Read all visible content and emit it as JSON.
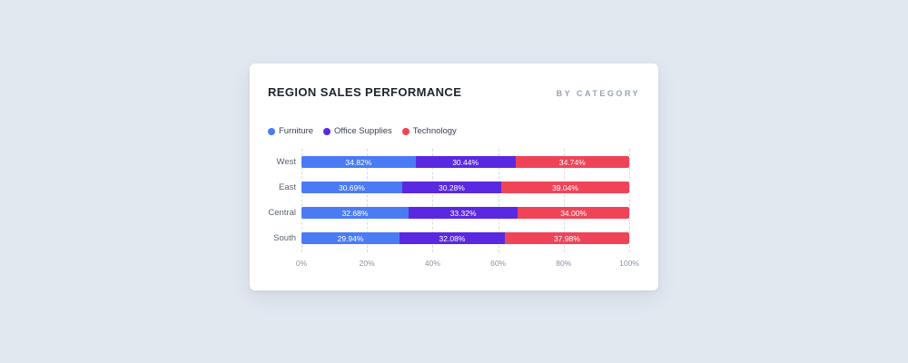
{
  "card": {
    "title": "REGION SALES PERFORMANCE",
    "subtitle": "BY CATEGORY"
  },
  "legend": [
    {
      "label": "Furniture",
      "color": "#4a7bf5"
    },
    {
      "label": "Office Supplies",
      "color": "#5a28e0"
    },
    {
      "label": "Technology",
      "color": "#ef4458"
    }
  ],
  "chart_data": {
    "type": "bar",
    "stacked": true,
    "orientation": "horizontal",
    "title": "REGION SALES PERFORMANCE",
    "subtitle": "BY CATEGORY",
    "categories": [
      "West",
      "East",
      "Central",
      "South"
    ],
    "series": [
      {
        "name": "Furniture",
        "color": "#4a7bf5",
        "values": [
          34.82,
          30.69,
          32.68,
          29.94
        ]
      },
      {
        "name": "Office Supplies",
        "color": "#5a28e0",
        "values": [
          30.44,
          30.28,
          33.32,
          32.08
        ]
      },
      {
        "name": "Technology",
        "color": "#ef4458",
        "values": [
          34.74,
          39.04,
          34.0,
          37.98
        ]
      }
    ],
    "data_labels": [
      [
        "34.82%",
        "30.44%",
        "34.74%"
      ],
      [
        "30.69%",
        "30.28%",
        "39.04%"
      ],
      [
        "32.68%",
        "33.32%",
        "34.00%"
      ],
      [
        "29.94%",
        "32.08%",
        "37.98%"
      ]
    ],
    "x_ticks": [
      "0%",
      "20%",
      "40%",
      "60%",
      "80%",
      "100%"
    ],
    "xlim": [
      0,
      100
    ],
    "grid": "dashed-vertical",
    "legend_position": "top-left"
  },
  "colors": {
    "page_background": "#e2e8f0",
    "card_background": "#ffffff",
    "gridline": "#d7dce4",
    "title_text": "#1f2430",
    "subtitle_text": "#9aa3b2",
    "axis_text": "#8a93a3"
  }
}
